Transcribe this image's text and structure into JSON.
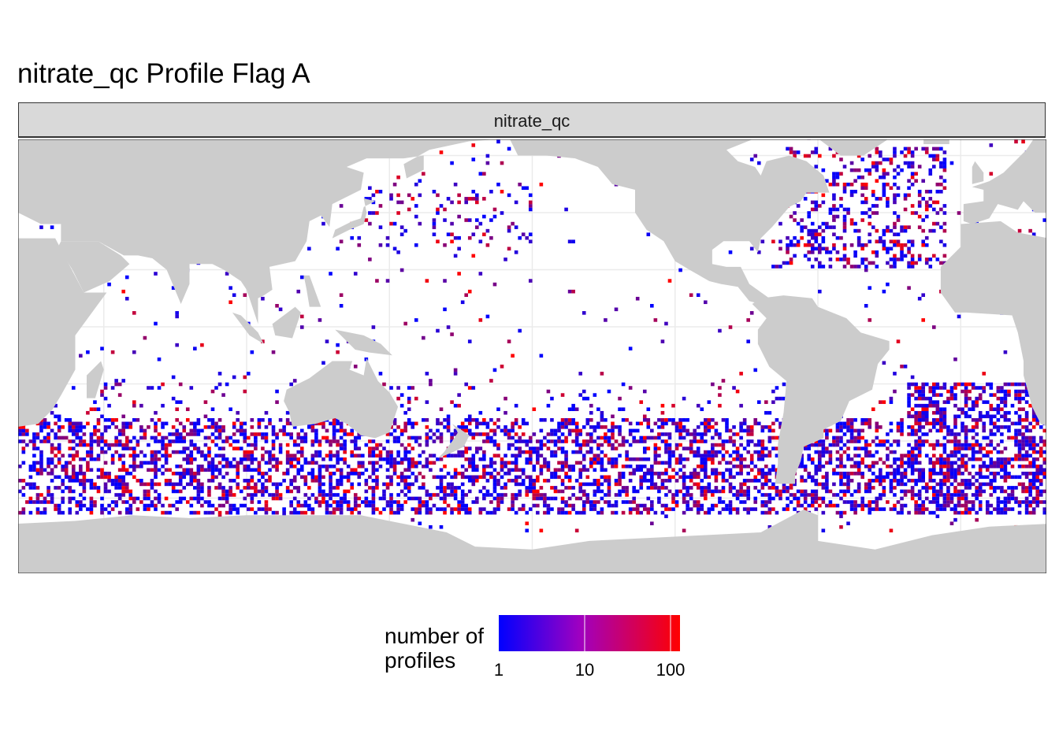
{
  "title": "nitrate_qc Profile Flag A",
  "facet_label": "nitrate_qc",
  "chart_data": {
    "type": "heatmap",
    "title": "nitrate_qc Profile Flag A",
    "facet": "nitrate_qc",
    "description_type": "global map of gridded profile counts",
    "legend": {
      "title": "number of profiles",
      "scale": "log10",
      "ticks": [
        "1",
        "10",
        "100"
      ],
      "range": [
        1,
        130
      ],
      "low_color": "#0000ff",
      "high_color": "#ff0000",
      "placement": "bottom"
    },
    "colors": {
      "land": "#cccccc",
      "ocean": "#ffffff",
      "grid": "#ebebeb"
    }
  }
}
